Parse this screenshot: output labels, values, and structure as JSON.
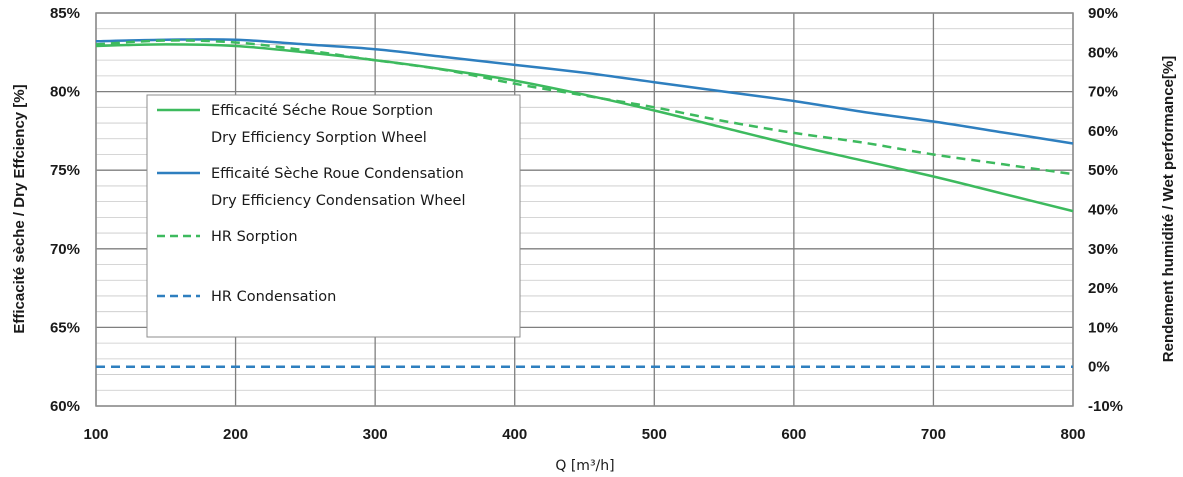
{
  "chart_data": {
    "type": "line",
    "xlabel": "Q [m³/h]",
    "ylabel_left": "Efficacité sèche / Dry Effciency [%]",
    "ylabel_right": "Rendement humidité / Wet performance[%]",
    "xlim": [
      100,
      800
    ],
    "ylim_left": [
      60,
      85
    ],
    "ylim_right": [
      -10,
      90
    ],
    "x_ticks": [
      "100",
      "200",
      "300",
      "400",
      "500",
      "600",
      "700",
      "800"
    ],
    "y_left_ticks": [
      "60%",
      "65%",
      "70%",
      "75%",
      "80%",
      "85%"
    ],
    "y_right_ticks": [
      "-10%",
      "0%",
      "10%",
      "20%",
      "30%",
      "40%",
      "50%",
      "60%",
      "70%",
      "80%",
      "90%"
    ],
    "grid": true,
    "legend_position": "inside-left",
    "series": [
      {
        "name": "Efficacité Séche Roue Sorption",
        "name2": "Dry Efficiency Sorption Wheel",
        "axis": "left",
        "color": "#3dba5e",
        "dash": false,
        "x": [
          100,
          150,
          200,
          250,
          300,
          350,
          400,
          450,
          500,
          550,
          600,
          650,
          700,
          750,
          800
        ],
        "y": [
          82.9,
          83.0,
          82.9,
          82.5,
          82.0,
          81.4,
          80.7,
          79.8,
          78.8,
          77.7,
          76.6,
          75.6,
          74.6,
          73.5,
          72.4
        ]
      },
      {
        "name": "Efficaité Sèche Roue Condensation",
        "name2": "Dry Efficiency Condensation Wheel",
        "axis": "left",
        "color": "#2e7fbf",
        "dash": false,
        "x": [
          100,
          150,
          200,
          250,
          300,
          350,
          400,
          450,
          500,
          550,
          600,
          650,
          700,
          750,
          800
        ],
        "y": [
          83.2,
          83.3,
          83.3,
          83.0,
          82.7,
          82.2,
          81.7,
          81.2,
          80.6,
          80.0,
          79.4,
          78.7,
          78.1,
          77.4,
          76.7
        ]
      },
      {
        "name": "HR Sorption",
        "name2": "",
        "axis": "right",
        "color": "#3dba5e",
        "dash": true,
        "x": [
          100,
          150,
          200,
          250,
          300,
          350,
          400,
          450,
          500,
          550,
          600,
          650,
          700,
          750,
          800
        ],
        "y": [
          82,
          83,
          82.5,
          80.5,
          78,
          75.5,
          72,
          69,
          66,
          62.5,
          59.5,
          57,
          54,
          51.5,
          49
        ]
      },
      {
        "name": "HR Condensation",
        "name2": "",
        "axis": "right",
        "color": "#2e7fbf",
        "dash": true,
        "x": [
          100,
          800
        ],
        "y": [
          0,
          0
        ]
      }
    ]
  }
}
